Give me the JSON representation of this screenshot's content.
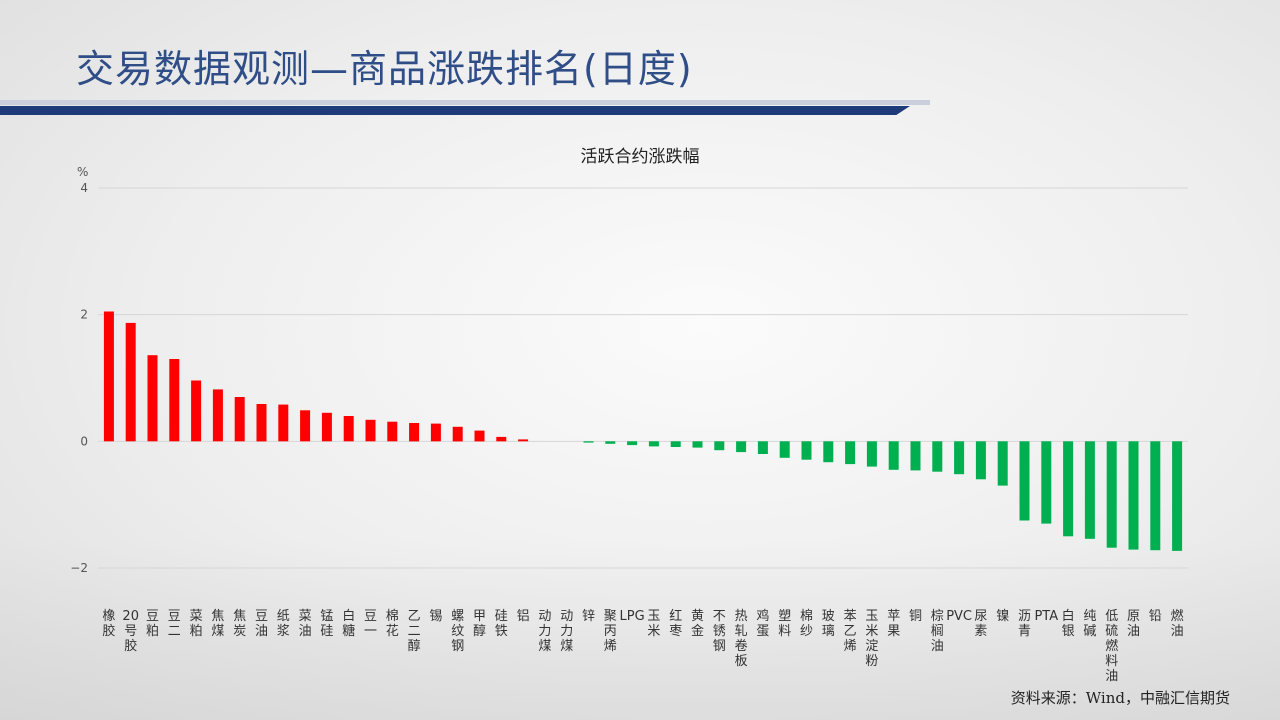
{
  "header": {
    "title": "交易数据观测—商品涨跌排名(日度)"
  },
  "footer": {
    "source": "资料来源：Wind，中融汇信期货"
  },
  "colors": {
    "positive": "#ff0000",
    "negative": "#00b050",
    "title_bar": "#1f3a78",
    "title_text": "#2f4d86"
  },
  "chart_data": {
    "type": "bar",
    "title": "活跃合约涨跌幅",
    "ylabel": "%",
    "ylim": [
      -2,
      4
    ],
    "yticks": [
      "4",
      "2",
      "0",
      "−2"
    ],
    "ytick_values": [
      4,
      2,
      0,
      -2
    ],
    "grid": true,
    "categories": [
      "橡胶",
      "20号胶",
      "豆粕",
      "豆二",
      "菜粕",
      "焦煤",
      "焦炭",
      "豆油",
      "纸浆",
      "菜油",
      "锰硅",
      "白糖",
      "豆一",
      "棉花",
      "乙二醇",
      "锡",
      "螺纹钢",
      "甲醇",
      "硅铁",
      "铝",
      "动力煤",
      "动力煤",
      "锌",
      "聚丙烯",
      "LPG",
      "玉米",
      "红枣",
      "黄金",
      "不锈钢",
      "热轧卷板",
      "鸡蛋",
      "塑料",
      "棉纱",
      "玻璃",
      "苯乙烯",
      "玉米淀粉",
      "苹果",
      "铜",
      "棕榈油",
      "PVC",
      "尿素",
      "镍",
      "沥青",
      "PTA",
      "白银",
      "纯碱",
      "低硫燃料油",
      "原油",
      "铅",
      "燃油"
    ],
    "values": [
      2.05,
      1.87,
      1.36,
      1.3,
      0.96,
      0.82,
      0.7,
      0.59,
      0.58,
      0.49,
      0.45,
      0.4,
      0.34,
      0.31,
      0.29,
      0.28,
      0.23,
      0.17,
      0.07,
      0.03,
      0.0,
      0.0,
      -0.02,
      -0.04,
      -0.06,
      -0.08,
      -0.09,
      -0.1,
      -0.14,
      -0.17,
      -0.2,
      -0.26,
      -0.29,
      -0.33,
      -0.36,
      -0.4,
      -0.45,
      -0.46,
      -0.48,
      -0.52,
      -0.6,
      -0.7,
      -1.25,
      -1.3,
      -1.5,
      -1.54,
      -1.68,
      -1.71,
      -1.72,
      -1.73
    ]
  }
}
